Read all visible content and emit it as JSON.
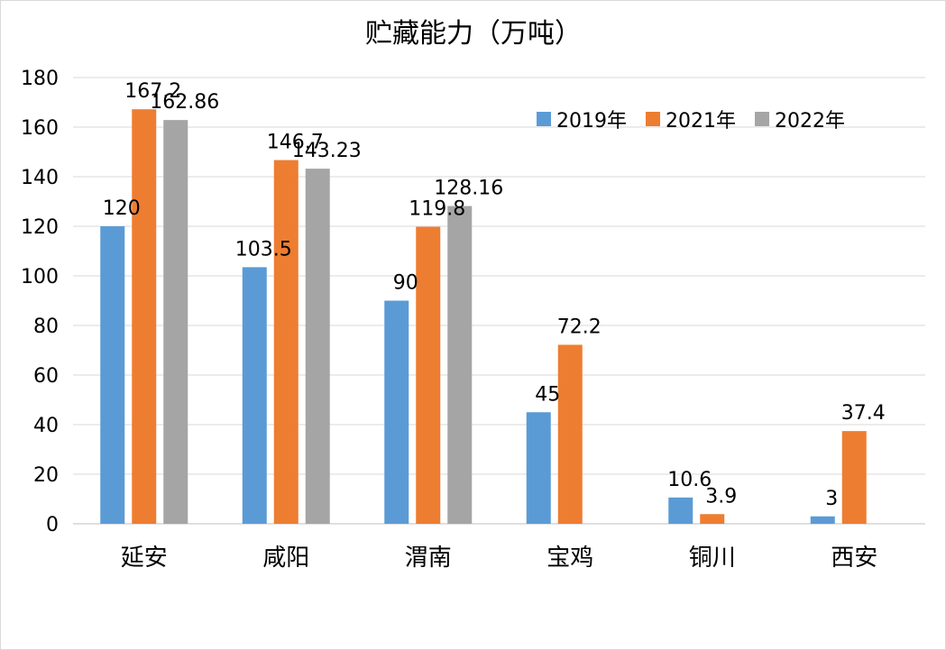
{
  "chart_data": {
    "type": "bar",
    "title": "贮藏能力（万吨）",
    "categories": [
      "延安",
      "咸阳",
      "渭南",
      "宝鸡",
      "铜川",
      "西安"
    ],
    "series": [
      {
        "name": "2019年",
        "color": "#5b9bd5",
        "values": [
          120,
          103.5,
          90,
          45,
          10.6,
          3
        ]
      },
      {
        "name": "2021年",
        "color": "#ed7d31",
        "values": [
          167.2,
          146.7,
          119.8,
          72.2,
          3.9,
          37.4
        ]
      },
      {
        "name": "2022年",
        "color": "#a5a5a5",
        "values": [
          162.86,
          143.23,
          128.16,
          null,
          null,
          null
        ]
      }
    ],
    "data_labels": [
      [
        "120",
        "103.5",
        "90",
        "45",
        "10.6",
        "3"
      ],
      [
        "167.2",
        "146.7",
        "119.8",
        "72.2",
        "3.9",
        "37.4"
      ],
      [
        "162.86",
        "143.23",
        "128.16",
        null,
        null,
        null
      ]
    ],
    "yticks": [
      "0",
      "20",
      "40",
      "60",
      "80",
      "100",
      "120",
      "140",
      "160",
      "180"
    ],
    "ylim": [
      0,
      180
    ],
    "grid": true,
    "legend": "top-right",
    "xlabel": "",
    "ylabel": ""
  }
}
